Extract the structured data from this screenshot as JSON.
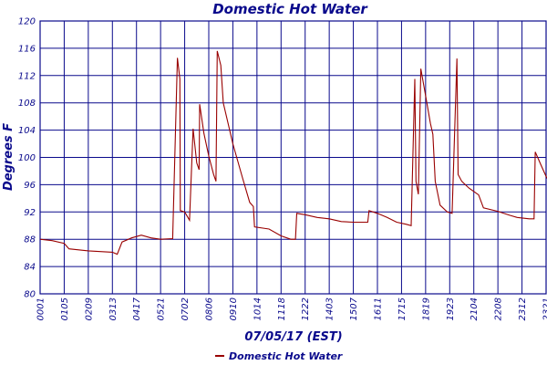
{
  "chart_data": {
    "type": "line",
    "title": "Domestic Hot Water",
    "xlabel": "07/05/17 (EST)",
    "ylabel": "Degrees F",
    "ylim": [
      80,
      120
    ],
    "yticks": [
      80,
      84,
      88,
      92,
      96,
      100,
      104,
      108,
      112,
      116,
      120
    ],
    "xticks": [
      "0001",
      "0105",
      "0209",
      "0313",
      "0417",
      "0521",
      "0702",
      "0806",
      "0910",
      "1014",
      "1118",
      "1222",
      "1403",
      "1507",
      "1611",
      "1715",
      "1819",
      "1923",
      "2104",
      "2208",
      "2312",
      "2321"
    ],
    "grid": true,
    "legend_position": "bottom-left",
    "series": [
      {
        "name": "Domestic Hot Water",
        "color": "#990000",
        "values": [
          [
            0.0,
            88.0
          ],
          [
            0.5,
            87.8
          ],
          [
            1.0,
            87.4
          ],
          [
            1.2,
            86.6
          ],
          [
            2.0,
            86.3
          ],
          [
            3.0,
            86.1
          ],
          [
            3.2,
            85.8
          ],
          [
            3.4,
            87.6
          ],
          [
            3.8,
            88.2
          ],
          [
            4.2,
            88.6
          ],
          [
            4.6,
            88.2
          ],
          [
            5.0,
            88.0
          ],
          [
            5.5,
            88.1
          ],
          [
            5.7,
            114.6
          ],
          [
            5.8,
            111.5
          ],
          [
            5.82,
            92.2
          ],
          [
            6.0,
            92.0
          ],
          [
            6.2,
            90.8
          ],
          [
            6.35,
            104.2
          ],
          [
            6.5,
            99.2
          ],
          [
            6.6,
            98.2
          ],
          [
            6.62,
            107.8
          ],
          [
            6.8,
            103.5
          ],
          [
            7.0,
            100.2
          ],
          [
            7.2,
            97.5
          ],
          [
            7.3,
            96.5
          ],
          [
            7.35,
            115.6
          ],
          [
            7.5,
            113.5
          ],
          [
            7.6,
            108.0
          ],
          [
            8.0,
            102.0
          ],
          [
            8.4,
            97.0
          ],
          [
            8.7,
            93.4
          ],
          [
            8.85,
            92.8
          ],
          [
            8.9,
            89.8
          ],
          [
            9.5,
            89.5
          ],
          [
            10.0,
            88.5
          ],
          [
            10.4,
            88.0
          ],
          [
            10.6,
            88.0
          ],
          [
            10.65,
            91.8
          ],
          [
            11.0,
            91.6
          ],
          [
            11.5,
            91.2
          ],
          [
            12.0,
            91.0
          ],
          [
            12.5,
            90.6
          ],
          [
            13.0,
            90.5
          ],
          [
            13.6,
            90.5
          ],
          [
            13.65,
            92.2
          ],
          [
            14.0,
            91.8
          ],
          [
            14.4,
            91.2
          ],
          [
            14.8,
            90.5
          ],
          [
            15.2,
            90.2
          ],
          [
            15.4,
            90.0
          ],
          [
            15.55,
            111.5
          ],
          [
            15.6,
            96.5
          ],
          [
            15.7,
            94.6
          ],
          [
            15.8,
            113.0
          ],
          [
            16.0,
            109.0
          ],
          [
            16.2,
            105.0
          ],
          [
            16.3,
            103.4
          ],
          [
            16.4,
            96.5
          ],
          [
            16.6,
            93.0
          ],
          [
            16.9,
            92.0
          ],
          [
            17.1,
            91.8
          ],
          [
            17.3,
            114.5
          ],
          [
            17.35,
            97.5
          ],
          [
            17.5,
            96.5
          ],
          [
            17.8,
            95.5
          ],
          [
            18.2,
            94.5
          ],
          [
            18.4,
            92.6
          ],
          [
            19.0,
            92.1
          ],
          [
            19.5,
            91.5
          ],
          [
            19.8,
            91.2
          ],
          [
            20.3,
            91.0
          ],
          [
            20.5,
            91.0
          ],
          [
            20.55,
            100.8
          ],
          [
            20.8,
            98.8
          ],
          [
            21.0,
            97.2
          ],
          [
            21.2,
            96.0
          ],
          [
            21.4,
            95.2
          ]
        ]
      }
    ]
  }
}
